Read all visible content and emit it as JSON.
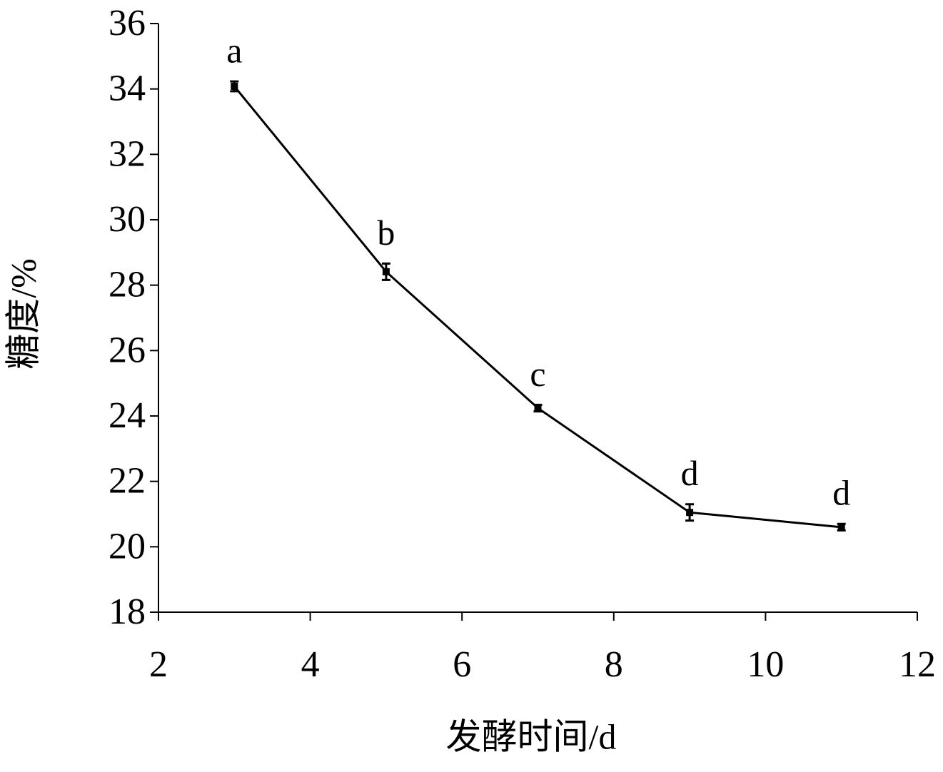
{
  "chart_data": {
    "type": "line",
    "x_label": "发酵时间/d",
    "y_label": "糖度/%",
    "x": [
      3,
      5,
      7,
      9,
      11
    ],
    "series": [
      {
        "color": "#000000",
        "values": [
          34.08,
          28.41,
          24.24,
          21.05,
          20.6
        ],
        "errors": [
          0.15,
          0.25,
          0.1,
          0.25,
          0.1
        ]
      }
    ],
    "annotations": [
      "a",
      "b",
      "c",
      "d",
      "d"
    ],
    "xlim": [
      2,
      12
    ],
    "xticks": [
      2,
      4,
      6,
      8,
      10,
      12
    ],
    "ylim": [
      18,
      36
    ],
    "yticks": [
      18,
      20,
      22,
      24,
      26,
      28,
      30,
      32,
      34,
      36
    ],
    "grid": false
  }
}
